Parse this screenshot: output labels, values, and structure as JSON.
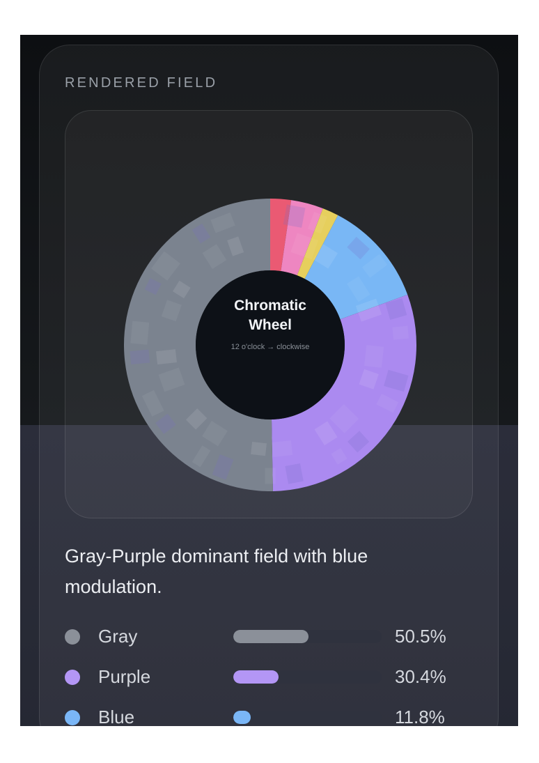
{
  "card": {
    "title": "RENDERED FIELD",
    "description": "Gray-Purple dominant field with blue modulation."
  },
  "wheel": {
    "title_line1": "Chromatic",
    "title_line2": "Wheel",
    "subtitle": "12 o'clock → clockwise"
  },
  "chart_data": {
    "type": "pie",
    "title": "Chromatic Wheel",
    "subtitle": "12 o'clock → clockwise",
    "slices": [
      {
        "name": "Red",
        "value": 2.3,
        "color": "#ea5a73"
      },
      {
        "name": "Pink",
        "value": 3.6,
        "color": "#ee86c1"
      },
      {
        "name": "Yellow",
        "value": 1.8,
        "color": "#e6cf5d"
      },
      {
        "name": "Blue",
        "value": 11.8,
        "color": "#79b7f5"
      },
      {
        "name": "Purple",
        "value": 30.4,
        "color": "#ab8af0"
      },
      {
        "name": "Gray",
        "value": 50.5,
        "color": "#7b838f"
      }
    ]
  },
  "legend": [
    {
      "name": "Gray",
      "value": 50.5,
      "pct_label": "50.5%",
      "color": "#8b9099"
    },
    {
      "name": "Purple",
      "value": 30.4,
      "pct_label": "30.4%",
      "color": "#b396f5"
    },
    {
      "name": "Blue",
      "value": 11.8,
      "pct_label": "11.8%",
      "color": "#7ab6f6"
    }
  ],
  "colors": {
    "background": "#121519",
    "card_border": "#3a3d45",
    "wheel_center": "#0d1117",
    "text_primary": "#eceef2",
    "text_muted": "#9aa0a8"
  }
}
